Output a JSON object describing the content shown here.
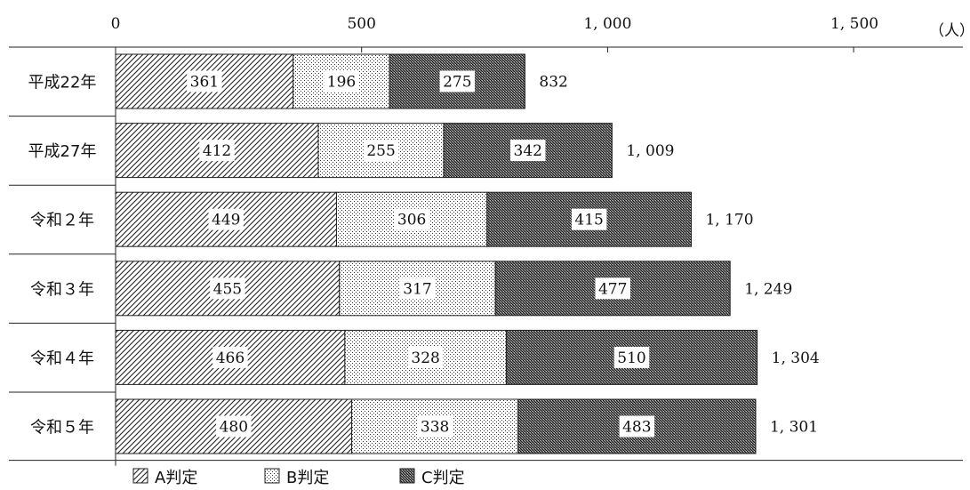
{
  "chart_data": {
    "type": "bar",
    "orientation": "horizontal",
    "stacked": true,
    "categories": [
      "平成22年",
      "平成27年",
      "令和２年",
      "令和３年",
      "令和４年",
      "令和５年"
    ],
    "series": [
      {
        "name": "A判定",
        "values": [
          361,
          412,
          449,
          455,
          466,
          480
        ],
        "pattern": "diagonal-hatch"
      },
      {
        "name": "B判定",
        "values": [
          196,
          255,
          306,
          317,
          328,
          338
        ],
        "pattern": "dots"
      },
      {
        "name": "C判定",
        "values": [
          275,
          342,
          415,
          477,
          510,
          483
        ],
        "pattern": "dense-crosshatch"
      }
    ],
    "totals": [
      "832",
      "1, 009",
      "1, 170",
      "1, 249",
      "1, 304",
      "1, 301"
    ],
    "xaxis": {
      "range": [
        0,
        1650
      ],
      "ticks": [
        0,
        500,
        1000,
        1500
      ],
      "tick_labels": [
        "0",
        "500",
        "1, 000",
        "1, 500"
      ],
      "unit": "（人）",
      "position": "top"
    },
    "legend": {
      "position": "bottom-left"
    },
    "grid": false
  }
}
